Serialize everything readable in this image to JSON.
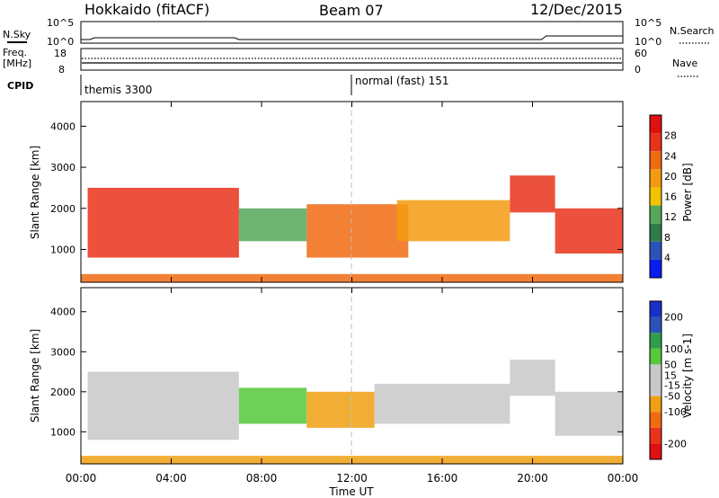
{
  "header": {
    "station": "Hokkaido (fitACF)",
    "beam": "Beam 07",
    "date": "12/Dec/2015"
  },
  "top_panel": {
    "nsky_label": "N.Sky",
    "nsky_ticks": [
      "10^5",
      "10^0"
    ],
    "nsearch_label": "N.Search",
    "nsearch_ticks": [
      "10^5",
      "10^0"
    ],
    "freq_label": "Freq.",
    "freq_unit": "[MHz]",
    "freq_ticks": [
      "18",
      "8"
    ],
    "nave_label": "Nave",
    "nave_ticks": [
      "60",
      "0"
    ],
    "cpid_label": "CPID",
    "cpid_modes": [
      {
        "text": "themis 3300"
      },
      {
        "text": "normal (fast) 151"
      }
    ]
  },
  "colors": {
    "power": [
      "#0a1cf0",
      "#2a52b8",
      "#2e7d49",
      "#55a85a",
      "#f2c400",
      "#f49a10",
      "#f06a12",
      "#e8321a",
      "#e01010"
    ],
    "velocity": [
      "#e01010",
      "#e8321a",
      "#f06a12",
      "#f0a010",
      "#c8c8c8",
      "#c8c8c8",
      "#56c83a",
      "#2f9e4a",
      "#2a52b8",
      "#1830c8"
    ]
  },
  "chart_data": [
    {
      "type": "heatmap",
      "panel": "power",
      "ylabel": "Slant Range [km]",
      "yticks": [
        "1000",
        "2000",
        "3000",
        "4000"
      ],
      "ylim": [
        200,
        4600
      ],
      "xlim": [
        "00:00",
        "24:00"
      ],
      "xticks": [
        "00:00",
        "04:00",
        "08:00",
        "12:00",
        "16:00",
        "20:00",
        "00:00"
      ],
      "colorbar_label": "Power [dB]",
      "colorbar_ticks": [
        "4",
        "8",
        "12",
        "16",
        "20",
        "24",
        "28"
      ],
      "colorbar_range": [
        0,
        32
      ],
      "echo_regions": [
        {
          "t0": 0.3,
          "t1": 7.0,
          "r0": 800,
          "r1": 2500,
          "level": 27
        },
        {
          "t0": 7.0,
          "t1": 10.0,
          "r0": 1200,
          "r1": 2000,
          "level": 12
        },
        {
          "t0": 10.0,
          "t1": 14.5,
          "r0": 800,
          "r1": 2100,
          "level": 24
        },
        {
          "t0": 14.0,
          "t1": 19.0,
          "r0": 1200,
          "r1": 2200,
          "level": 18
        },
        {
          "t0": 19.0,
          "t1": 21.0,
          "r0": 1900,
          "r1": 2800,
          "level": 26
        },
        {
          "t0": 21.0,
          "t1": 24.0,
          "r0": 900,
          "r1": 2000,
          "level": 25
        },
        {
          "t0": 0.0,
          "t1": 24.0,
          "r0": 200,
          "r1": 400,
          "level": 22
        }
      ]
    },
    {
      "type": "heatmap",
      "panel": "velocity",
      "ylabel": "Slant Range [km]",
      "yticks": [
        "1000",
        "2000",
        "3000",
        "4000"
      ],
      "ylim": [
        200,
        4600
      ],
      "xlim": [
        "00:00",
        "24:00"
      ],
      "xticks": [
        "00:00",
        "04:00",
        "08:00",
        "12:00",
        "16:00",
        "20:00",
        "00:00"
      ],
      "xlabel": "Time UT",
      "colorbar_label": "Velocity [m s-1]",
      "colorbar_ticks": [
        "200",
        "100",
        "50",
        "15",
        "-15",
        "-50",
        "-100",
        "-200"
      ],
      "colorbar_range": [
        -250,
        250
      ],
      "echo_regions": [
        {
          "t0": 0.3,
          "t1": 7.0,
          "r0": 800,
          "r1": 2500,
          "level": 0
        },
        {
          "t0": 7.0,
          "t1": 10.0,
          "r0": 1200,
          "r1": 2100,
          "level": 60
        },
        {
          "t0": 10.0,
          "t1": 13.0,
          "r0": 1100,
          "r1": 2000,
          "level": -60
        },
        {
          "t0": 13.0,
          "t1": 19.0,
          "r0": 1200,
          "r1": 2200,
          "level": 0
        },
        {
          "t0": 19.0,
          "t1": 21.0,
          "r0": 1900,
          "r1": 2800,
          "level": 40
        },
        {
          "t0": 21.0,
          "t1": 24.0,
          "r0": 900,
          "r1": 2000,
          "level": 0
        },
        {
          "t0": 0.0,
          "t1": 24.0,
          "r0": 200,
          "r1": 400,
          "level": -60
        }
      ]
    }
  ]
}
